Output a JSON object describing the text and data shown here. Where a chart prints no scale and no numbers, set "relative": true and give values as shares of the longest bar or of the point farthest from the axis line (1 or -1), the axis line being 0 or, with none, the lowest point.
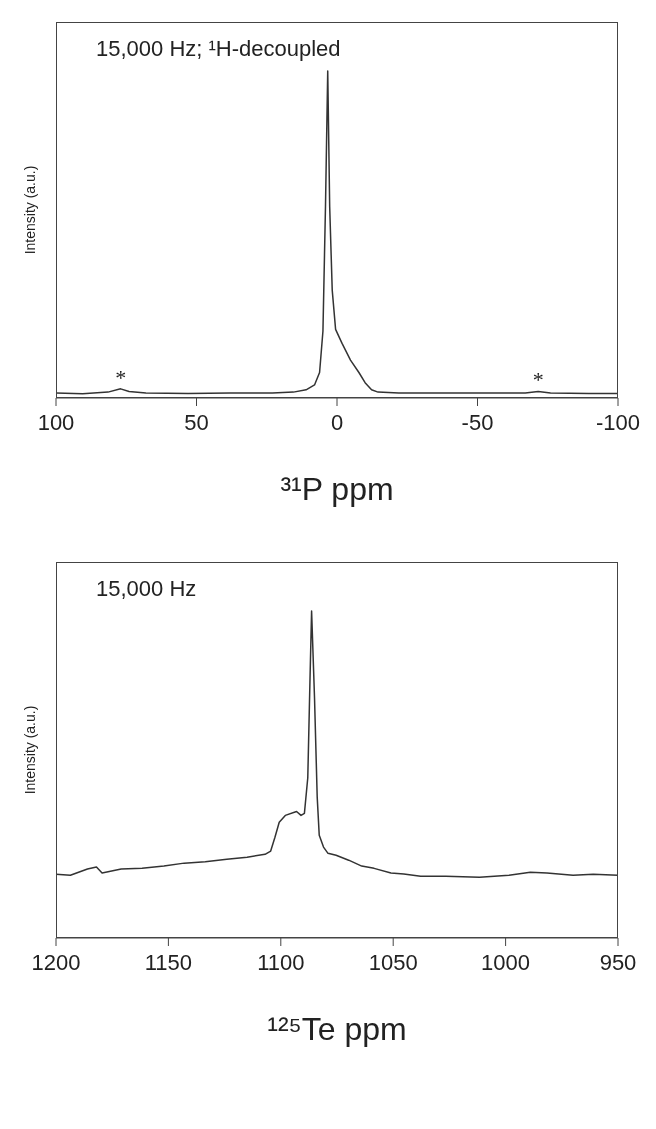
{
  "chart_data": [
    {
      "type": "line",
      "relative": true,
      "xlabel": "³¹P ppm",
      "ylabel": "Intensity (a.u.)",
      "xlim": [
        100,
        -100
      ],
      "xticks": [
        100,
        50,
        0,
        -50,
        -100
      ],
      "annotations": [
        "15,000 Hz; ¹H-decoupled",
        {
          "text": "*",
          "x": 77,
          "y": 0.028
        },
        {
          "text": "*",
          "x": -71.6,
          "y": 0.02
        }
      ],
      "series": [
        {
          "color": "#333333",
          "x": [
            100,
            90.5,
            81.5,
            77,
            74,
            68,
            53,
            38,
            23,
            15.5,
            11,
            8,
            6.2,
            5,
            4.1,
            3.3,
            2.6,
            1.7,
            0.5,
            -1.8,
            -4.8,
            -7.8,
            -10,
            -12.3,
            -14.6,
            -22,
            -37,
            -52,
            -67,
            -71.6,
            -76,
            -89.6,
            -100
          ],
          "values": [
            0.015,
            0.013,
            0.018,
            0.028,
            0.02,
            0.015,
            0.014,
            0.015,
            0.015,
            0.018,
            0.025,
            0.04,
            0.078,
            0.205,
            0.585,
            1,
            0.585,
            0.33,
            0.21,
            0.167,
            0.116,
            0.078,
            0.047,
            0.025,
            0.018,
            0.015,
            0.015,
            0.015,
            0.015,
            0.02,
            0.015,
            0.014,
            0.014
          ]
        }
      ]
    },
    {
      "type": "line",
      "relative": true,
      "xlabel": "¹²⁵Te ppm",
      "ylabel": "Intensity (a.u.)",
      "xlim": [
        1200,
        950
      ],
      "xticks": [
        1200,
        1150,
        1100,
        1050,
        1000,
        950
      ],
      "annotations": [
        "15,000 Hz"
      ],
      "series": [
        {
          "color": "#333333",
          "x": [
            1200,
            1193.6,
            1186,
            1182,
            1179.5,
            1171,
            1161.7,
            1152,
            1143,
            1133.6,
            1124,
            1115,
            1107,
            1104.5,
            1102.6,
            1100.7,
            1098,
            1093,
            1091,
            1089.5,
            1088,
            1087,
            1086.3,
            1085,
            1083.8,
            1082.9,
            1081,
            1079,
            1075.4,
            1069.8,
            1064,
            1058.5,
            1051,
            1045.3,
            1037.8,
            1026.6,
            1011.6,
            998.5,
            989,
            981.6,
            970,
            961,
            950
          ],
          "values": [
            0.195,
            0.192,
            0.211,
            0.217,
            0.199,
            0.211,
            0.213,
            0.22,
            0.229,
            0.233,
            0.241,
            0.247,
            0.256,
            0.266,
            0.308,
            0.354,
            0.375,
            0.387,
            0.375,
            0.381,
            0.49,
            0.795,
            1,
            0.734,
            0.43,
            0.314,
            0.278,
            0.259,
            0.253,
            0.238,
            0.22,
            0.213,
            0.199,
            0.196,
            0.189,
            0.189,
            0.186,
            0.192,
            0.201,
            0.199,
            0.192,
            0.195,
            0.192
          ]
        }
      ]
    }
  ]
}
